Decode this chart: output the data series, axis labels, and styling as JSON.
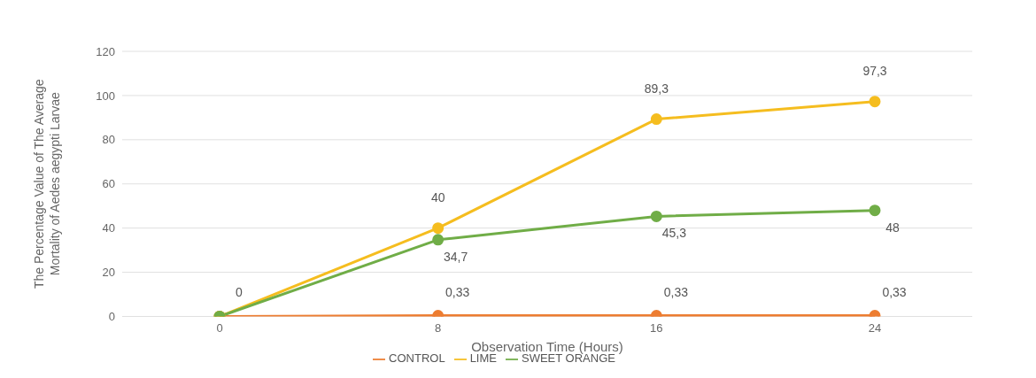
{
  "chart_data": {
    "type": "line",
    "xlabel": "Observation Time (Hours)",
    "ylabel": "The Percentage Value of The Average Mortality of Aedes aegypti Larvae",
    "categories": [
      "0",
      "8",
      "16",
      "24"
    ],
    "ylim": [
      0,
      120
    ],
    "yticks": [
      0,
      20,
      40,
      60,
      80,
      100,
      120
    ],
    "grid": "y",
    "legend": "bottom",
    "marker": "circle",
    "line_style": "solid",
    "series": [
      {
        "name": "CONTROL",
        "color": "#ed7d31",
        "values": [
          0,
          0.33,
          0.33,
          0.33
        ],
        "value_labels": [
          "0",
          "0,33",
          "0,33",
          "0,33"
        ]
      },
      {
        "name": "LIME",
        "color": "#f5bd1f",
        "values": [
          0,
          40,
          89.3,
          97.3
        ],
        "value_labels": [
          null,
          "40",
          "89,3",
          "97,3"
        ]
      },
      {
        "name": "SWEET ORANGE",
        "color": "#70ad47",
        "values": [
          0,
          34.7,
          45.3,
          48
        ],
        "value_labels": [
          null,
          "34,7",
          "45,3",
          "48"
        ]
      }
    ]
  }
}
